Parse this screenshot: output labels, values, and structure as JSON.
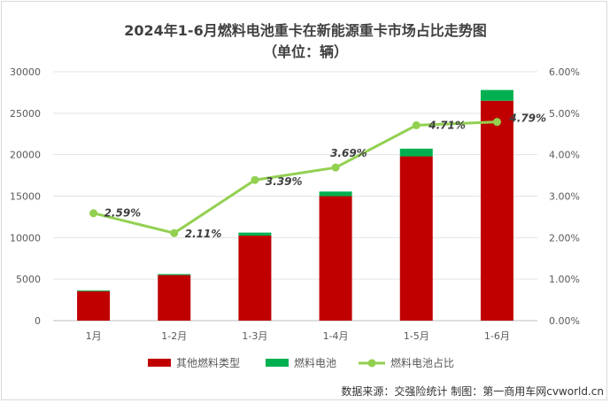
{
  "chart_data": {
    "type": "bar+line",
    "title": "2024年1-6月燃料电池重卡在新能源重卡市场占比走势图",
    "subtitle": "（单位：辆）",
    "categories": [
      "1月",
      "1-2月",
      "1-3月",
      "1-4月",
      "1-5月",
      "1-6月"
    ],
    "series": [
      {
        "name": "其他燃料类型",
        "type": "stacked-bar",
        "color": "#c00000",
        "values": [
          3550,
          5490,
          10250,
          15000,
          19800,
          26500
        ]
      },
      {
        "name": "燃料电池",
        "type": "stacked-bar",
        "color": "#00b050",
        "values": [
          100,
          120,
          360,
          560,
          930,
          1300
        ]
      },
      {
        "name": "燃料电池占比",
        "type": "line",
        "axis": "right",
        "color": "#92d050",
        "values": [
          2.59,
          2.11,
          3.39,
          3.69,
          4.71,
          4.79
        ],
        "labels": [
          "2.59%",
          "2.11%",
          "3.39%",
          "3.69%",
          "4.71%",
          "4.79%"
        ]
      }
    ],
    "y_left": {
      "min": 0,
      "max": 30000,
      "ticks": [
        "0",
        "5000",
        "10000",
        "15000",
        "20000",
        "25000",
        "30000"
      ]
    },
    "y_right": {
      "min": 0,
      "max": 6,
      "ticks": [
        "0.00%",
        "1.00%",
        "2.00%",
        "3.00%",
        "4.00%",
        "5.00%",
        "6.00%"
      ]
    },
    "grid": true,
    "legend_position": "bottom"
  },
  "source_note": "数据来源：交强险统计   制图：第一商用车网cvworld.cn"
}
